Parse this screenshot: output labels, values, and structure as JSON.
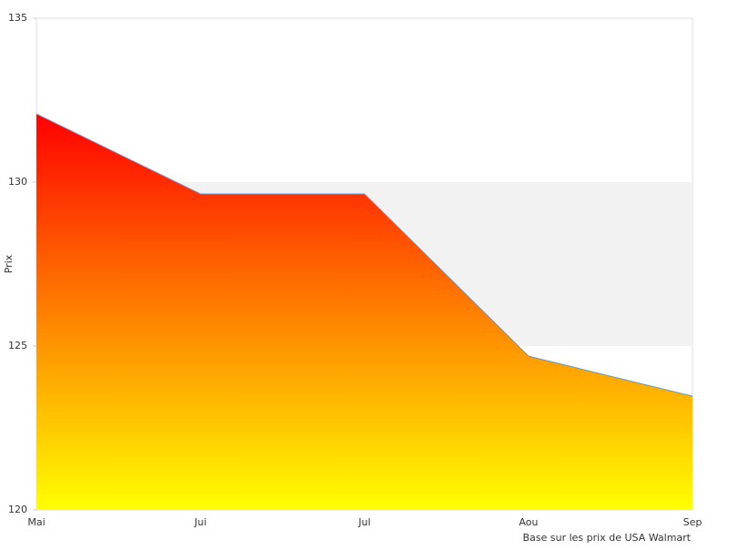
{
  "chart_data": {
    "type": "area",
    "y_label": "Prix",
    "annotation": "Base sur les prix de USA Walmart",
    "categories": [
      "Mai",
      "Jui",
      "Jul",
      "Aou",
      "Sep"
    ],
    "values": [
      132.08,
      129.64,
      129.64,
      124.69,
      123.47
    ],
    "line_color": "#5b9bd5",
    "gradient": [
      "#ff0000",
      "#ffff00"
    ],
    "ylim": [
      120,
      135
    ],
    "yticks": [
      120,
      125,
      130,
      135
    ],
    "alternate_bands": true
  }
}
